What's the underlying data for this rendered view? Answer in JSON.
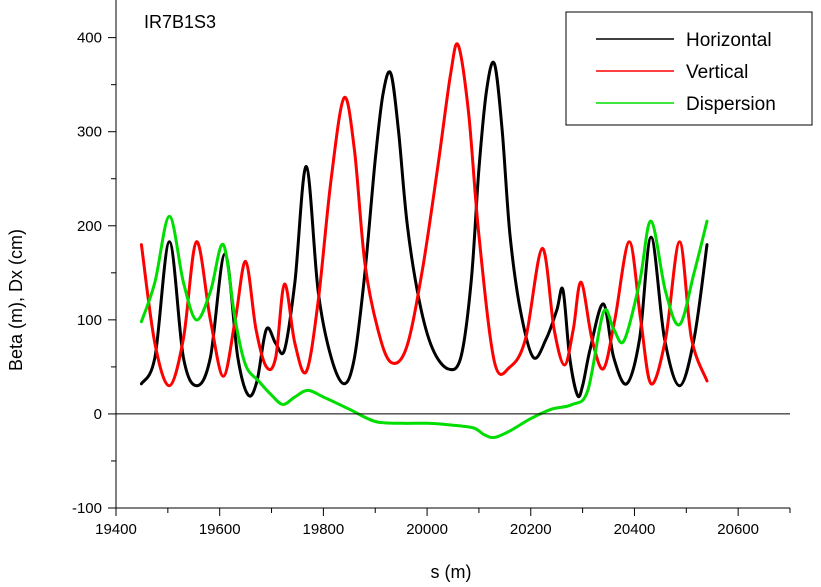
{
  "chart_data": {
    "type": "line",
    "title": "IR7B1S3",
    "xlabel": "s (m)",
    "ylabel": "Beta (m), Dx (cm)",
    "xlim": [
      19400,
      20700
    ],
    "ylim": [
      -100,
      440
    ],
    "x_ticks": [
      19400,
      19600,
      19800,
      20000,
      20200,
      20400,
      20600
    ],
    "y_ticks": [
      -100,
      0,
      100,
      200,
      300,
      400
    ],
    "legend_position": "top-right",
    "grid": false,
    "zero_line": true,
    "series": [
      {
        "name": "Horizontal",
        "color": "#000000",
        "x": [
          19449,
          19475,
          19503,
          19530,
          19556,
          19582,
          19610,
          19635,
          19655,
          19672,
          19690,
          19708,
          19725,
          19745,
          19767,
          19790,
          19815,
          19840,
          19860,
          19880,
          19900,
          19915,
          19930,
          19945,
          19962,
          19985,
          20010,
          20040,
          20065,
          20085,
          20100,
          20115,
          20130,
          20145,
          20160,
          20180,
          20205,
          20230,
          20250,
          20262,
          20275,
          20290,
          20300,
          20315,
          20340,
          20360,
          20385,
          20410,
          20432,
          20458,
          20487,
          20515,
          20540
        ],
        "values": [
          32,
          60,
          183,
          60,
          30,
          60,
          170,
          60,
          20,
          35,
          90,
          75,
          68,
          140,
          263,
          130,
          60,
          32,
          60,
          150,
          270,
          340,
          362,
          300,
          200,
          120,
          70,
          48,
          60,
          140,
          260,
          345,
          372,
          300,
          190,
          110,
          60,
          80,
          110,
          132,
          60,
          20,
          30,
          70,
          117,
          60,
          32,
          80,
          188,
          80,
          30,
          80,
          180
        ]
      },
      {
        "name": "Vertical",
        "color": "#ff0000",
        "x": [
          19449,
          19475,
          19503,
          19530,
          19555,
          19582,
          19607,
          19630,
          19650,
          19670,
          19690,
          19708,
          19725,
          19745,
          19767,
          19790,
          19815,
          19840,
          19860,
          19880,
          19905,
          19930,
          19960,
          19990,
          20020,
          20045,
          20060,
          20080,
          20100,
          20130,
          20160,
          20190,
          20222,
          20245,
          20265,
          20282,
          20297,
          20318,
          20340,
          20362,
          20390,
          20412,
          20432,
          20460,
          20487,
          20510,
          20540
        ],
        "values": [
          180,
          75,
          30,
          80,
          183,
          100,
          40,
          100,
          162,
          90,
          50,
          60,
          138,
          75,
          45,
          120,
          250,
          336,
          280,
          160,
          90,
          55,
          70,
          150,
          260,
          360,
          392,
          320,
          190,
          55,
          50,
          80,
          176,
          90,
          52,
          90,
          140,
          80,
          48,
          100,
          183,
          100,
          32,
          80,
          183,
          80,
          35
        ]
      },
      {
        "name": "Dispersion",
        "color": "#00dd00",
        "x": [
          19449,
          19475,
          19503,
          19530,
          19555,
          19582,
          19607,
          19630,
          19650,
          19675,
          19700,
          19722,
          19745,
          19770,
          19800,
          19850,
          19900,
          19950,
          20000,
          20050,
          20090,
          20110,
          20130,
          20160,
          20200,
          20240,
          20280,
          20310,
          20340,
          20360,
          20380,
          20410,
          20432,
          20460,
          20487,
          20515,
          20540
        ],
        "values": [
          98,
          140,
          210,
          140,
          100,
          130,
          180,
          100,
          52,
          35,
          20,
          10,
          18,
          25,
          18,
          5,
          -8,
          -10,
          -10,
          -12,
          -15,
          -22,
          -25,
          -18,
          -5,
          5,
          10,
          25,
          108,
          90,
          78,
          140,
          205,
          130,
          95,
          150,
          205
        ]
      }
    ]
  }
}
